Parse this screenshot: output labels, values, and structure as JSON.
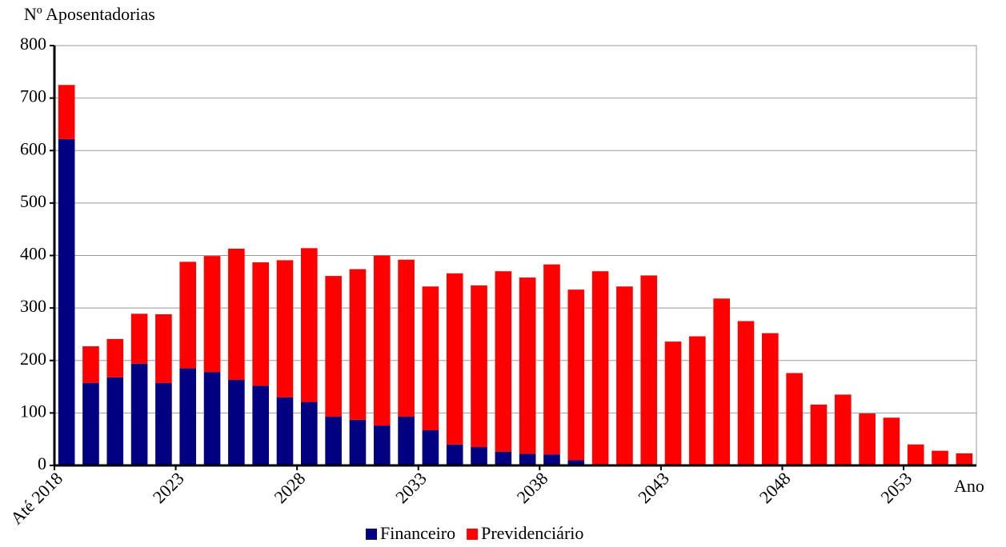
{
  "chart_data": {
    "type": "stacked-bar",
    "y_label": "Nº Aposentadorias",
    "x_label": "Ano",
    "categories": [
      "Até 2018",
      null,
      null,
      null,
      null,
      "2023",
      null,
      null,
      null,
      null,
      "2028",
      null,
      null,
      null,
      null,
      "2033",
      null,
      null,
      null,
      null,
      "2038",
      null,
      null,
      null,
      null,
      "2043",
      null,
      null,
      null,
      null,
      "2048",
      null,
      null,
      null,
      null,
      "2053",
      null,
      null
    ],
    "series": [
      {
        "name": "Financeiro",
        "color": "#000080",
        "values": [
          622,
          157,
          168,
          194,
          157,
          185,
          178,
          163,
          152,
          130,
          121,
          93,
          87,
          76,
          93,
          67,
          40,
          35,
          26,
          22,
          21,
          10,
          0,
          0,
          0,
          0,
          0,
          0,
          0,
          0,
          0,
          0,
          0,
          0,
          0,
          0,
          0,
          0
        ]
      },
      {
        "name": "Previdenciário",
        "color": "#ff0000",
        "values": [
          103,
          70,
          73,
          95,
          131,
          203,
          221,
          250,
          235,
          261,
          293,
          268,
          287,
          324,
          299,
          274,
          326,
          308,
          344,
          336,
          362,
          325,
          370,
          341,
          362,
          236,
          246,
          318,
          275,
          252,
          176,
          116,
          135,
          99,
          91,
          40,
          28,
          23
        ]
      }
    ],
    "ylim": [
      0,
      800
    ],
    "yticks": [
      0,
      100,
      200,
      300,
      400,
      500,
      600,
      700,
      800
    ],
    "grid": true
  }
}
